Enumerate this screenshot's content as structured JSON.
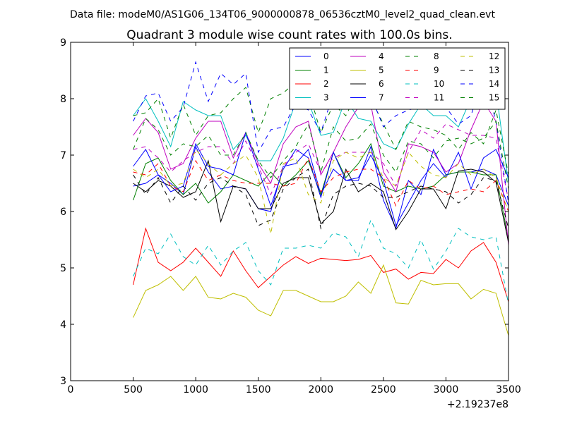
{
  "chart_data": {
    "type": "line",
    "suptitle": "Data file: modeM0/AS1G06_134T06_9000000878_06536cztM0_level2_quad_clean.evt",
    "title": "Quadrant 3 module wise count rates with 100.0s bins.",
    "xlabel": "",
    "ylabel": "",
    "xlim": [
      0,
      3500
    ],
    "ylim": [
      3,
      9
    ],
    "xticks": [
      "0",
      "500",
      "1000",
      "1500",
      "2000",
      "2500",
      "3000",
      "3500"
    ],
    "yticks": [
      "3",
      "4",
      "5",
      "6",
      "7",
      "8",
      "9"
    ],
    "x_offset_label": "+2.19237e8",
    "legend_position": "upper-right",
    "x": [
      500,
      600,
      700,
      800,
      900,
      1000,
      1100,
      1200,
      1300,
      1400,
      1500,
      1600,
      1700,
      1800,
      1900,
      2000,
      2100,
      2200,
      2300,
      2400,
      2500,
      2600,
      2700,
      2800,
      2900,
      3000,
      3100,
      3200,
      3300,
      3400,
      3500
    ],
    "series": [
      {
        "name": "0",
        "color": "#0000ff",
        "dash": "solid",
        "values": [
          6.45,
          6.5,
          6.65,
          6.5,
          6.3,
          7.15,
          6.7,
          6.4,
          6.45,
          6.4,
          6.05,
          6.0,
          6.8,
          6.85,
          7.1,
          6.3,
          6.75,
          6.55,
          6.55,
          7.15,
          6.2,
          5.7,
          6.55,
          6.3,
          7.1,
          6.65,
          6.7,
          6.7,
          6.75,
          6.65,
          6.1
        ]
      },
      {
        "name": "1",
        "color": "#008000",
        "dash": "solid",
        "values": [
          6.2,
          6.85,
          6.95,
          6.55,
          6.3,
          6.5,
          6.15,
          6.35,
          6.65,
          6.55,
          6.45,
          6.7,
          6.45,
          6.65,
          6.9,
          6.3,
          7.05,
          6.6,
          6.85,
          7.2,
          6.45,
          6.35,
          6.45,
          6.4,
          6.45,
          6.65,
          6.7,
          6.7,
          6.65,
          6.65,
          5.5
        ]
      },
      {
        "name": "2",
        "color": "#ff0000",
        "dash": "solid",
        "values": [
          4.7,
          5.7,
          5.1,
          4.95,
          5.1,
          5.35,
          5.1,
          4.85,
          5.3,
          4.95,
          4.65,
          4.85,
          5.05,
          5.2,
          5.08,
          5.17,
          5.15,
          5.13,
          5.15,
          5.22,
          4.92,
          4.98,
          4.8,
          4.92,
          4.9,
          5.15,
          5.0,
          5.3,
          5.45,
          5.1,
          4.4
        ]
      },
      {
        "name": "3",
        "color": "#00bfbf",
        "dash": "solid",
        "values": [
          7.7,
          8.0,
          7.6,
          7.15,
          7.95,
          7.8,
          7.7,
          7.7,
          7.1,
          7.35,
          6.9,
          6.9,
          7.3,
          7.95,
          7.95,
          7.35,
          7.4,
          8.0,
          7.65,
          7.6,
          7.2,
          7.1,
          7.55,
          7.9,
          7.7,
          7.7,
          7.5,
          8.0,
          8.1,
          8.15,
          6.5
        ]
      },
      {
        "name": "4",
        "color": "#bf00bf",
        "dash": "solid",
        "values": [
          7.35,
          7.65,
          7.4,
          6.75,
          6.85,
          7.3,
          7.6,
          7.6,
          6.95,
          7.4,
          6.85,
          6.5,
          7.2,
          7.5,
          7.6,
          6.65,
          7.05,
          7.5,
          7.85,
          7.9,
          6.7,
          6.35,
          7.2,
          7.15,
          7.05,
          6.7,
          6.85,
          7.45,
          7.95,
          7.6,
          5.4
        ]
      },
      {
        "name": "5",
        "color": "#bfbf00",
        "dash": "solid",
        "values": [
          4.12,
          4.6,
          4.7,
          4.85,
          4.6,
          4.85,
          4.48,
          4.45,
          4.55,
          4.48,
          4.25,
          4.15,
          4.6,
          4.6,
          4.5,
          4.4,
          4.4,
          4.5,
          4.75,
          4.55,
          5.05,
          4.38,
          4.36,
          4.78,
          4.7,
          4.72,
          4.72,
          4.45,
          4.62,
          4.55,
          3.8
        ]
      },
      {
        "name": "6",
        "color": "#000000",
        "dash": "solid",
        "values": [
          6.5,
          6.35,
          6.55,
          6.45,
          6.25,
          6.35,
          6.9,
          5.82,
          6.45,
          6.4,
          6.05,
          6.05,
          6.5,
          6.6,
          6.6,
          5.78,
          6.0,
          6.75,
          6.35,
          6.5,
          6.35,
          5.68,
          6.0,
          6.4,
          6.4,
          6.05,
          6.72,
          6.75,
          6.7,
          6.52,
          5.45
        ]
      },
      {
        "name": "7",
        "color": "#0000ff",
        "dash": "solid",
        "values": [
          6.8,
          7.1,
          6.65,
          6.35,
          6.45,
          7.2,
          6.8,
          6.75,
          6.65,
          7.4,
          6.75,
          6.1,
          6.75,
          7.1,
          6.95,
          6.25,
          7.05,
          6.55,
          6.6,
          7.0,
          6.55,
          5.75,
          6.15,
          6.55,
          6.85,
          6.6,
          7.05,
          6.4,
          6.95,
          7.1,
          6.6
        ]
      },
      {
        "name": "8",
        "color": "#008000",
        "dash": "dash",
        "values": [
          7.7,
          7.75,
          8.0,
          7.3,
          7.9,
          7.35,
          7.7,
          7.75,
          8.0,
          8.2,
          7.4,
          8.0,
          8.1,
          8.3,
          8.15,
          7.4,
          7.9,
          7.7,
          8.15,
          8.0,
          7.55,
          7.1,
          7.6,
          7.5,
          7.45,
          7.35,
          7.1,
          7.4,
          7.2,
          7.8,
          6.65
        ]
      },
      {
        "name": "9",
        "color": "#ff0000",
        "dash": "dash",
        "values": [
          6.7,
          6.65,
          6.85,
          6.45,
          6.35,
          6.9,
          6.55,
          6.65,
          6.55,
          6.5,
          6.5,
          6.5,
          6.45,
          6.5,
          6.95,
          6.35,
          6.6,
          6.7,
          6.75,
          6.75,
          6.6,
          6.1,
          6.55,
          6.4,
          6.45,
          6.3,
          6.35,
          6.4,
          6.35,
          6.55,
          6.0
        ]
      },
      {
        "name": "10",
        "color": "#00bfbf",
        "dash": "dash",
        "values": [
          4.85,
          5.35,
          5.25,
          5.6,
          5.2,
          5.05,
          5.4,
          5.05,
          5.3,
          5.45,
          4.95,
          4.7,
          5.35,
          5.35,
          5.4,
          5.35,
          5.62,
          5.55,
          5.2,
          5.85,
          5.35,
          5.25,
          5.0,
          5.5,
          4.98,
          5.3,
          5.7,
          5.55,
          5.5,
          5.55,
          4.35
        ]
      },
      {
        "name": "11",
        "color": "#bf00bf",
        "dash": "dash",
        "values": [
          7.1,
          7.15,
          6.95,
          6.7,
          6.9,
          7.05,
          7.15,
          7.15,
          6.85,
          7.25,
          6.8,
          6.3,
          6.8,
          7.05,
          7.2,
          6.7,
          6.95,
          7.05,
          7.05,
          7.05,
          6.85,
          6.45,
          7.05,
          7.45,
          7.3,
          7.55,
          7.45,
          7.35,
          7.35,
          7.3,
          6.2
        ]
      },
      {
        "name": "12",
        "color": "#bfbf00",
        "dash": "dash",
        "values": [
          6.75,
          6.6,
          6.75,
          6.45,
          6.5,
          7.1,
          6.85,
          6.65,
          6.85,
          7.0,
          6.6,
          5.6,
          6.85,
          6.95,
          6.3,
          6.15,
          6.9,
          7.05,
          6.95,
          7.05,
          6.6,
          6.45,
          7.05,
          6.8,
          6.65,
          6.6,
          6.85,
          6.65,
          6.75,
          6.6,
          6.0
        ]
      },
      {
        "name": "13",
        "color": "#000000",
        "dash": "dash",
        "values": [
          6.65,
          6.3,
          6.6,
          6.15,
          6.45,
          6.2,
          6.5,
          6.6,
          6.45,
          6.3,
          5.75,
          5.85,
          6.4,
          6.6,
          6.75,
          5.7,
          6.3,
          6.45,
          6.5,
          6.45,
          6.25,
          6.25,
          6.35,
          6.45,
          6.4,
          6.35,
          6.15,
          6.3,
          6.6,
          6.55,
          5.7
        ]
      },
      {
        "name": "14",
        "color": "#0000ff",
        "dash": "dash",
        "values": [
          7.6,
          8.05,
          8.1,
          7.6,
          7.85,
          8.65,
          7.95,
          8.45,
          8.25,
          8.45,
          7.05,
          7.45,
          7.5,
          7.9,
          7.8,
          7.4,
          8.1,
          8.1,
          8.2,
          8.05,
          7.5,
          7.7,
          7.8,
          7.85,
          7.9,
          7.85,
          7.55,
          7.7,
          8.4,
          7.6,
          6.15
        ]
      },
      {
        "name": "15",
        "color": "#008000",
        "dash": "dash",
        "values": [
          7.1,
          7.65,
          7.45,
          7.0,
          7.2,
          7.15,
          7.35,
          7.0,
          7.0,
          7.4,
          6.9,
          6.6,
          6.9,
          7.15,
          7.55,
          6.7,
          7.5,
          7.25,
          7.3,
          7.55,
          7.0,
          6.7,
          7.25,
          7.2,
          6.95,
          7.25,
          7.3,
          7.2,
          7.3,
          7.6,
          6.4
        ]
      }
    ]
  }
}
